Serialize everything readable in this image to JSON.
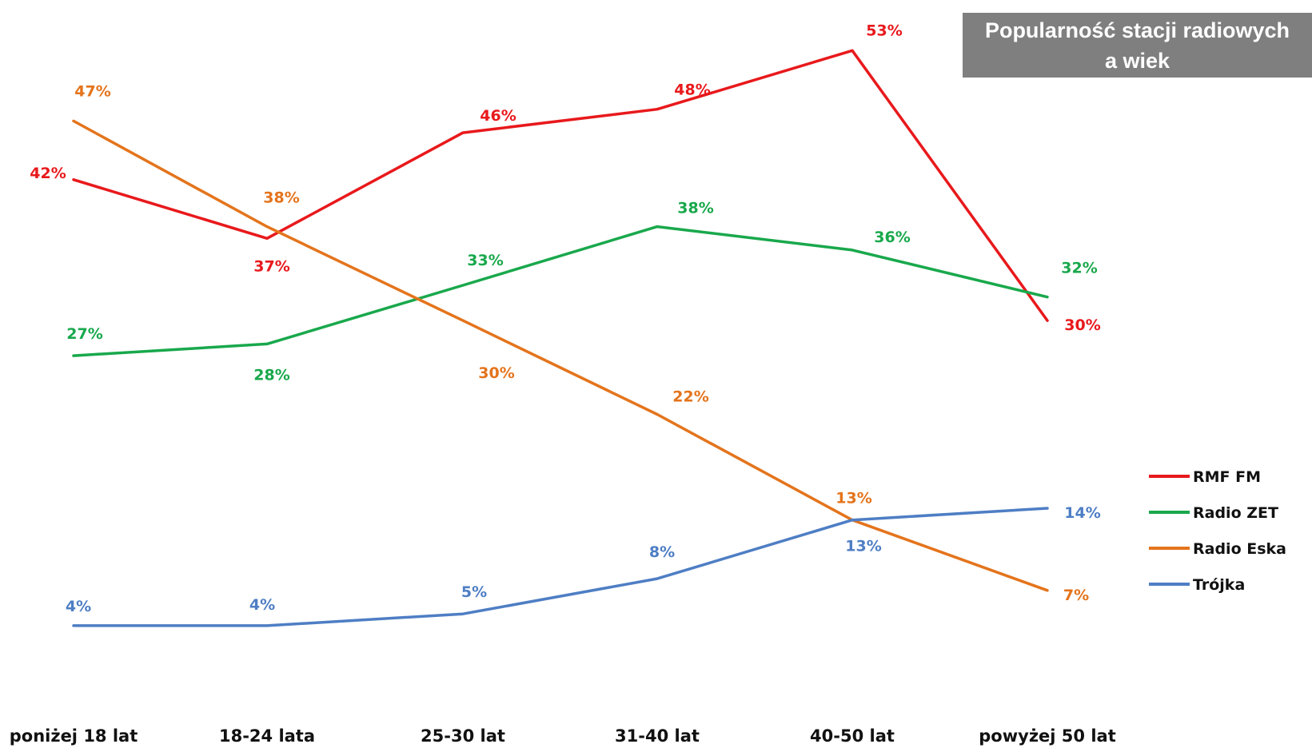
{
  "chart_data": {
    "type": "line",
    "title": [
      "Popularność stacji radiowych",
      "a wiek"
    ],
    "categories": [
      "poniżej 18 lat",
      "18-24 lata",
      "25-30 lat",
      "31-40 lat",
      "40-50 lat",
      "powyżej 50 lat"
    ],
    "ylim": [
      0,
      55
    ],
    "grid": false,
    "legend": "right",
    "series": [
      {
        "name": "RMF FM",
        "color": "#e8191c",
        "values": [
          42,
          37,
          46,
          48,
          53,
          30
        ],
        "labels": [
          "42%",
          "37%",
          "46%",
          "48%",
          "53%",
          "30%"
        ]
      },
      {
        "name": "Radio ZET",
        "color": "#19a84c",
        "values": [
          27,
          28,
          33,
          38,
          36,
          32
        ],
        "labels": [
          "27%",
          "28%",
          "33%",
          "38%",
          "36%",
          "32%"
        ]
      },
      {
        "name": "Radio Eska",
        "color": "#e4741c",
        "values": [
          47,
          38,
          30,
          22,
          13,
          7
        ],
        "labels": [
          "47%",
          "38%",
          "30%",
          "22%",
          "13%",
          "7%"
        ]
      },
      {
        "name": "Trójka",
        "color": "#4e7ec4",
        "values": [
          4,
          4,
          5,
          8,
          13,
          14
        ],
        "labels": [
          "4%",
          "4%",
          "5%",
          "8%",
          "13%",
          "14%"
        ]
      }
    ]
  }
}
